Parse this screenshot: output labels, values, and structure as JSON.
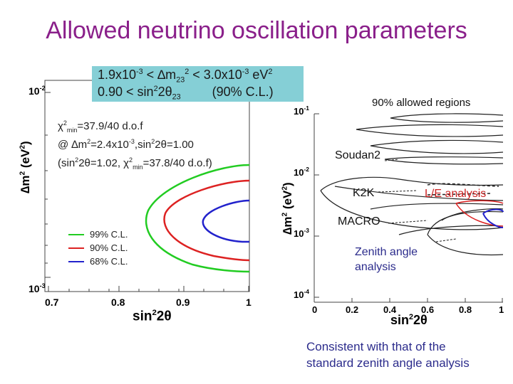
{
  "title": "Allowed neutrino oscillation parameters",
  "range_box": {
    "line1_a": "1.9x10",
    "line1_a_exp": "-3",
    "line1_b": " < ∆m",
    "line1_b_sub": "23",
    "line1_b_sup": "2",
    "line1_c": " < 3.0x10",
    "line1_c_exp": "-3",
    "line1_d": " eV",
    "line1_d_sup": "2",
    "line2_a": "0.90 < sin",
    "line2_a_sup": "2",
    "line2_b": "2θ",
    "line2_b_sub": "23",
    "line2_c": "(90% C.L.)"
  },
  "chi_info": {
    "l1_a": "χ",
    "l1_a_sup": "2",
    "l1_a_sub": "min",
    "l1_b": "=37.9/40 d.o.f",
    "l2_a": "@ ∆m",
    "l2_a_sup": "2",
    "l2_b": "=2.4x10",
    "l2_b_sup": "-3",
    "l2_c": ",sin",
    "l2_c_sup": "2",
    "l2_d": "2θ=1.00",
    "l3_a": "(sin",
    "l3_a_sup": "2",
    "l3_b": "2θ=1.02, χ",
    "l3_b_sup": "2",
    "l3_b_sub": "min",
    "l3_c": "=37.8/40 d.o.f)"
  },
  "left_plot": {
    "y_ticks": [
      {
        "base": "10",
        "exp": "-2"
      },
      {
        "base": "10",
        "exp": "-3"
      }
    ],
    "x_ticks": [
      "0.7",
      "0.8",
      "0.9",
      "1"
    ],
    "xlabel": "sin",
    "xlabel_sup": "2",
    "xlabel_tail": "2θ",
    "ylabel": "∆m",
    "ylabel_sup": "2",
    "ylabel_tail": " (eV",
    "ylabel_sup2": "2",
    "ylabel_end": ")",
    "legend": [
      {
        "label": "99% C.L.",
        "color": "#22cc22"
      },
      {
        "label": "90% C.L.",
        "color": "#dd2222"
      },
      {
        "label": "68% C.L.",
        "color": "#2222cc"
      }
    ]
  },
  "right_plot": {
    "title": "90% allowed regions",
    "y_ticks": [
      {
        "base": "10",
        "exp": "-1"
      },
      {
        "base": "10",
        "exp": "-2"
      },
      {
        "base": "10",
        "exp": "-3"
      },
      {
        "base": "10",
        "exp": "-4"
      }
    ],
    "x_ticks": [
      "0",
      "0.2",
      "0.4",
      "0.6",
      "0.8",
      "1"
    ],
    "xlabel": "sin",
    "xlabel_sup": "2",
    "xlabel_tail": "2θ",
    "ylabel": "∆m",
    "ylabel_sup": "2",
    "ylabel_tail": " (eV",
    "ylabel_sup2": "2",
    "ylabel_end": ")",
    "labels": {
      "soudan2": "Soudan2",
      "k2k": "K2K",
      "le": "L/E analysis",
      "macro": "MACRO",
      "zenith1": "Zenith angle",
      "zenith2": "analysis"
    }
  },
  "note": {
    "line1": "Consistent with that of the",
    "line2": "standard zenith angle analysis"
  },
  "colors": {
    "title": "#8a1f8a",
    "box": "#85cfd6",
    "note": "#2c2c8c",
    "c99": "#22cc22",
    "c90": "#dd2222",
    "c68": "#2222cc"
  }
}
